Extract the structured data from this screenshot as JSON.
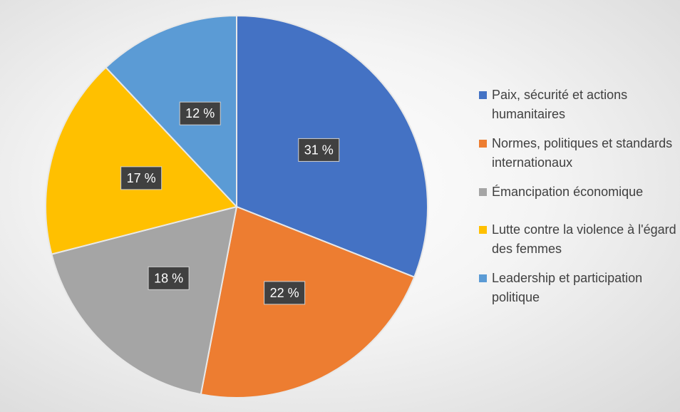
{
  "chart_data": {
    "type": "pie",
    "categories": [
      "Paix, sécurité et actions humanitaires",
      "Normes, politiques et standards internationaux",
      "Émancipation économique",
      "Lutte contre la violence à l'égard des femmes",
      "Leadership et participation politique"
    ],
    "values": [
      31,
      22,
      18,
      17,
      12
    ],
    "value_labels": [
      "31 %",
      "22 %",
      "18 %",
      "17 %",
      "12 %"
    ],
    "colors": [
      "#4472c4",
      "#ed7d31",
      "#a5a5a5",
      "#ffc000",
      "#5b9bd5"
    ],
    "legend": "right"
  }
}
